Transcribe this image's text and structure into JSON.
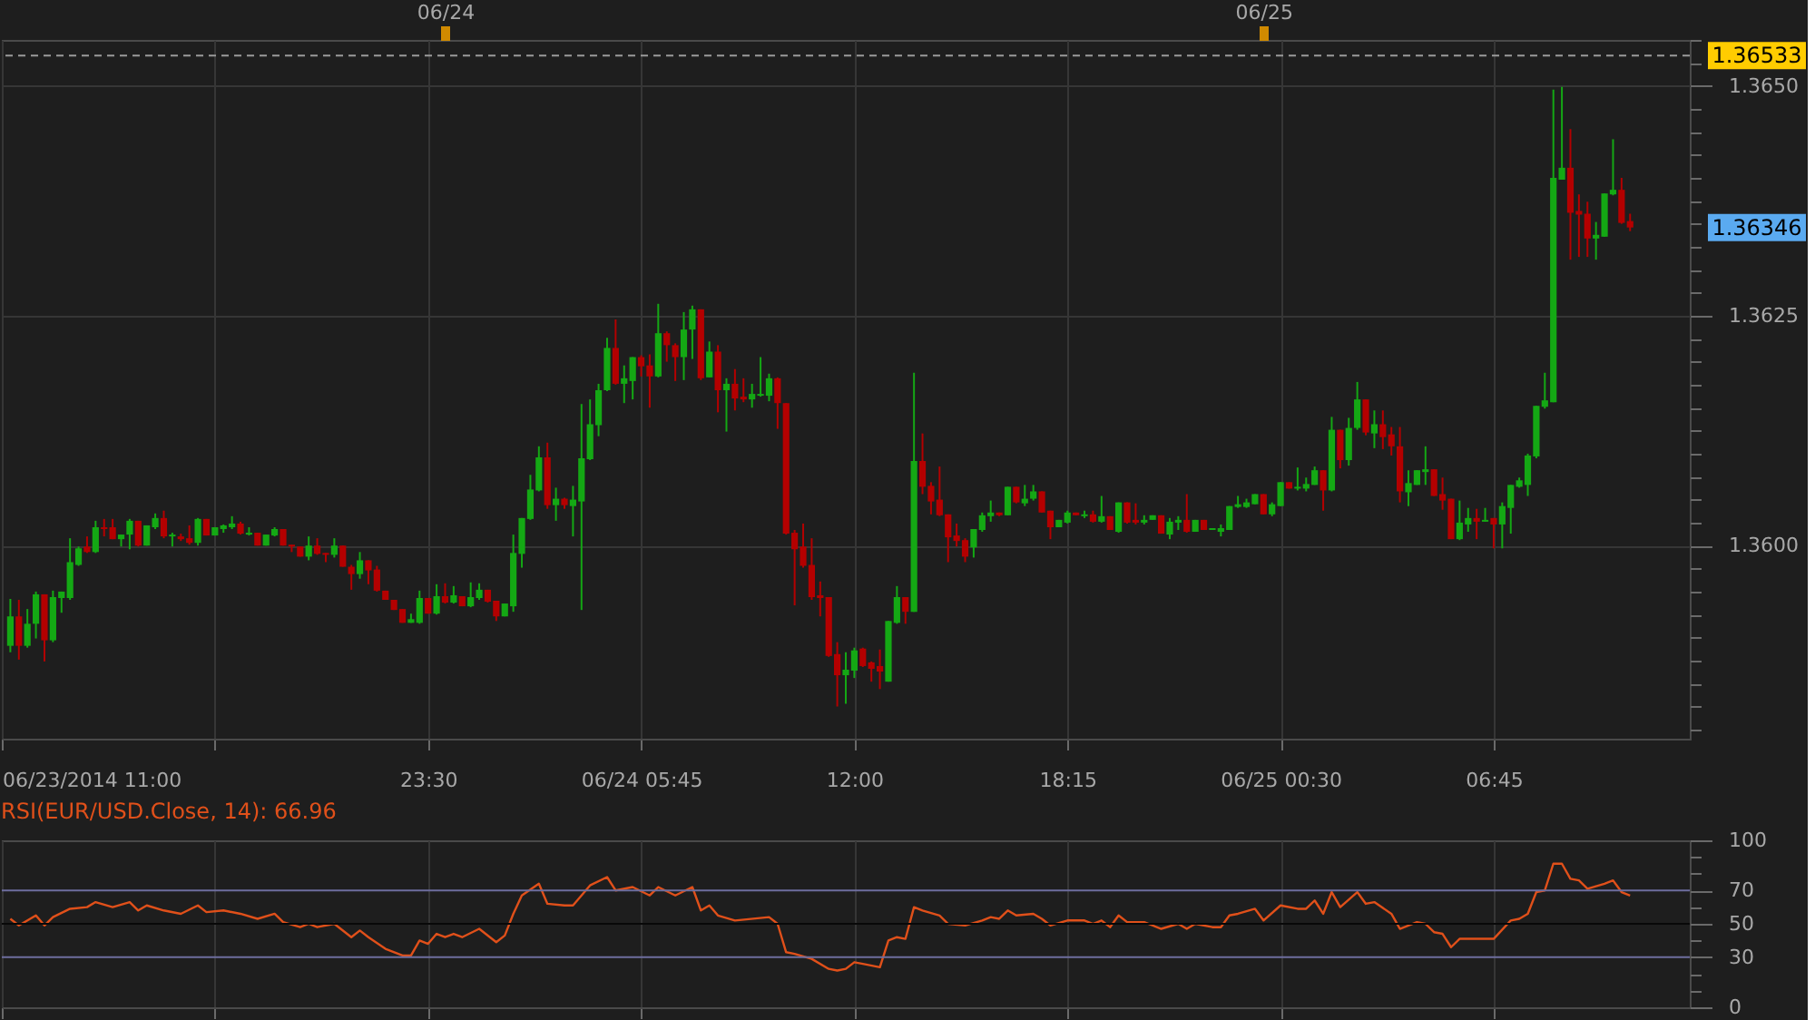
{
  "chart_data": [
    {
      "type": "candlestick",
      "x": [
        "2014-06-23T11:15",
        "2014-06-23T11:30",
        "2014-06-23T11:45",
        "2014-06-23T12:00",
        "2014-06-23T12:15",
        "2014-06-23T12:30",
        "2014-06-23T12:45",
        "2014-06-23T13:00",
        "2014-06-23T13:15",
        "2014-06-23T13:30",
        "2014-06-23T13:45",
        "2014-06-23T14:00",
        "2014-06-23T14:15",
        "2014-06-23T14:30",
        "2014-06-23T14:45",
        "2014-06-23T15:00",
        "2014-06-23T15:15",
        "2014-06-23T15:30",
        "2014-06-23T15:45",
        "2014-06-23T16:00",
        "2014-06-23T16:15",
        "2014-06-23T16:30",
        "2014-06-23T16:45",
        "2014-06-23T17:00",
        "2014-06-23T17:15",
        "2014-06-23T17:30",
        "2014-06-23T17:45",
        "2014-06-23T18:00",
        "2014-06-23T18:15",
        "2014-06-23T18:30",
        "2014-06-23T18:45",
        "2014-06-23T19:00",
        "2014-06-23T19:15",
        "2014-06-23T19:30",
        "2014-06-23T19:45",
        "2014-06-23T20:00",
        "2014-06-23T20:15",
        "2014-06-23T20:30",
        "2014-06-23T20:45",
        "2014-06-23T21:00",
        "2014-06-23T21:15",
        "2014-06-23T21:30",
        "2014-06-23T21:45",
        "2014-06-23T22:00",
        "2014-06-23T22:15",
        "2014-06-23T22:30",
        "2014-06-23T22:45",
        "2014-06-23T23:00",
        "2014-06-23T23:15",
        "2014-06-23T23:30",
        "2014-06-23T23:45",
        "2014-06-24T00:00",
        "2014-06-24T00:15",
        "2014-06-24T00:30",
        "2014-06-24T00:45",
        "2014-06-24T01:00",
        "2014-06-24T01:15",
        "2014-06-24T01:30",
        "2014-06-24T01:45",
        "2014-06-24T02:00",
        "2014-06-24T02:15",
        "2014-06-24T02:30",
        "2014-06-24T02:45",
        "2014-06-24T03:00",
        "2014-06-24T03:15",
        "2014-06-24T03:30",
        "2014-06-24T03:45",
        "2014-06-24T04:00",
        "2014-06-24T04:15",
        "2014-06-24T04:30",
        "2014-06-24T04:45",
        "2014-06-24T05:00",
        "2014-06-24T05:15",
        "2014-06-24T05:30",
        "2014-06-24T05:45",
        "2014-06-24T06:00",
        "2014-06-24T06:15",
        "2014-06-24T06:30",
        "2014-06-24T06:45",
        "2014-06-24T07:00",
        "2014-06-24T07:15",
        "2014-06-24T07:30",
        "2014-06-24T07:45",
        "2014-06-24T08:00",
        "2014-06-24T08:15",
        "2014-06-24T08:30",
        "2014-06-24T08:45",
        "2014-06-24T09:00",
        "2014-06-24T09:15",
        "2014-06-24T09:30",
        "2014-06-24T09:45",
        "2014-06-24T10:00",
        "2014-06-24T10:15",
        "2014-06-24T10:30",
        "2014-06-24T10:45",
        "2014-06-24T11:00",
        "2014-06-24T11:15",
        "2014-06-24T11:30",
        "2014-06-24T11:45",
        "2014-06-24T12:00",
        "2014-06-24T12:15",
        "2014-06-24T12:30",
        "2014-06-24T12:45",
        "2014-06-24T13:00",
        "2014-06-24T13:15",
        "2014-06-24T13:30",
        "2014-06-24T13:45",
        "2014-06-24T14:00",
        "2014-06-24T14:15",
        "2014-06-24T14:30",
        "2014-06-24T14:45",
        "2014-06-24T15:00",
        "2014-06-24T15:15",
        "2014-06-24T15:30",
        "2014-06-24T15:45",
        "2014-06-24T16:00",
        "2014-06-24T16:15",
        "2014-06-24T16:30",
        "2014-06-24T16:45",
        "2014-06-24T17:00",
        "2014-06-24T17:15",
        "2014-06-24T17:30",
        "2014-06-24T17:45",
        "2014-06-24T18:00",
        "2014-06-24T18:15",
        "2014-06-24T18:30",
        "2014-06-24T18:45",
        "2014-06-24T19:00",
        "2014-06-24T19:15",
        "2014-06-24T19:30",
        "2014-06-24T19:45",
        "2014-06-24T20:00",
        "2014-06-24T20:15",
        "2014-06-24T20:30",
        "2014-06-24T20:45",
        "2014-06-24T21:00",
        "2014-06-24T21:15",
        "2014-06-24T21:30",
        "2014-06-24T21:45",
        "2014-06-24T22:00",
        "2014-06-24T22:15",
        "2014-06-24T22:30",
        "2014-06-24T22:45",
        "2014-06-24T23:00",
        "2014-06-24T23:15",
        "2014-06-24T23:30",
        "2014-06-24T23:45",
        "2014-06-25T00:00",
        "2014-06-25T00:15",
        "2014-06-25T00:30",
        "2014-06-25T00:45",
        "2014-06-25T01:00",
        "2014-06-25T01:15",
        "2014-06-25T01:30",
        "2014-06-25T01:45",
        "2014-06-25T02:00",
        "2014-06-25T02:15",
        "2014-06-25T02:30",
        "2014-06-25T02:45",
        "2014-06-25T03:00",
        "2014-06-25T03:15",
        "2014-06-25T03:30",
        "2014-06-25T03:45",
        "2014-06-25T04:00",
        "2014-06-25T04:15",
        "2014-06-25T04:30",
        "2014-06-25T04:45",
        "2014-06-25T05:00",
        "2014-06-25T05:15",
        "2014-06-25T05:30",
        "2014-06-25T05:45",
        "2014-06-25T06:00",
        "2014-06-25T06:15",
        "2014-06-25T06:30",
        "2014-06-25T06:45",
        "2014-06-25T07:00",
        "2014-06-25T07:15",
        "2014-06-25T07:30",
        "2014-06-25T07:45",
        "2014-06-25T08:00",
        "2014-06-25T08:15",
        "2014-06-25T08:30",
        "2014-06-25T08:45",
        "2014-06-25T09:00",
        "2014-06-25T09:15",
        "2014-06-25T09:30",
        "2014-06-25T09:45",
        "2014-06-25T10:00",
        "2014-06-25T10:15",
        "2014-06-25T10:30",
        "2014-06-25T10:45"
      ],
      "ohlc": [
        [
          1.35891,
          1.35942,
          1.35884,
          1.35923
        ],
        [
          1.35923,
          1.35941,
          1.35876,
          1.35891
        ],
        [
          1.35891,
          1.35931,
          1.35889,
          1.35915
        ],
        [
          1.35915,
          1.3595,
          1.35899,
          1.35947
        ],
        [
          1.35947,
          1.35947,
          1.35874,
          1.35897
        ],
        [
          1.35897,
          1.35951,
          1.35895,
          1.35944
        ],
        [
          1.35943,
          1.3595,
          1.35927,
          1.3595
        ],
        [
          1.35943,
          1.36008,
          1.35941,
          1.35982
        ],
        [
          1.35979,
          1.35999,
          1.35978,
          1.35997
        ],
        [
          1.35999,
          1.3601,
          1.35992,
          1.35993
        ],
        [
          1.35993,
          1.36027,
          1.35992,
          1.3602
        ],
        [
          1.3602,
          1.36029,
          1.3601,
          1.36018
        ],
        [
          1.3602,
          1.36029,
          1.36007,
          1.36007
        ],
        [
          1.36007,
          1.36012,
          1.35999,
          1.36012
        ],
        [
          1.36012,
          1.36029,
          1.35996,
          1.36027
        ],
        [
          1.36027,
          1.36027,
          1.35999,
          1.36
        ],
        [
          1.36,
          1.36022,
          1.36,
          1.36022
        ],
        [
          1.3602,
          1.36035,
          1.36018,
          1.3603
        ],
        [
          1.3603,
          1.36038,
          1.36008,
          1.3601
        ],
        [
          1.3601,
          1.36014,
          1.35999,
          1.36012
        ],
        [
          1.3601,
          1.36013,
          1.36005,
          1.36007
        ],
        [
          1.36008,
          1.36022,
          1.36001,
          1.36003
        ],
        [
          1.36003,
          1.3603,
          1.36,
          1.36029
        ],
        [
          1.36029,
          1.36029,
          1.36011,
          1.36011
        ],
        [
          1.36011,
          1.3602,
          1.36011,
          1.3602
        ],
        [
          1.36018,
          1.36023,
          1.36014,
          1.36022
        ],
        [
          1.3602,
          1.36032,
          1.36018,
          1.36024
        ],
        [
          1.36024,
          1.36026,
          1.36012,
          1.36013
        ],
        [
          1.36012,
          1.3602,
          1.36011,
          1.36014
        ],
        [
          1.36014,
          1.36014,
          1.36,
          1.36
        ],
        [
          1.36,
          1.36012,
          1.36,
          1.36012
        ],
        [
          1.36011,
          1.3602,
          1.3601,
          1.36018
        ],
        [
          1.36018,
          1.36018,
          1.36,
          1.36
        ],
        [
          1.36001,
          1.36001,
          1.35993,
          1.35999
        ],
        [
          1.35999,
          1.35999,
          1.35988,
          1.35988
        ],
        [
          1.35988,
          1.3601,
          1.35984,
          1.36
        ],
        [
          1.36,
          1.36008,
          1.3599,
          1.35991
        ],
        [
          1.35992,
          1.35992,
          1.35982,
          1.3599
        ],
        [
          1.3599,
          1.36008,
          1.35987,
          1.36
        ],
        [
          1.36,
          1.36,
          1.35977,
          1.35977
        ],
        [
          1.35977,
          1.35979,
          1.35952,
          1.35969
        ],
        [
          1.35969,
          1.35993,
          1.35964,
          1.35984
        ],
        [
          1.35984,
          1.35984,
          1.35958,
          1.35973
        ],
        [
          1.35974,
          1.35978,
          1.3595,
          1.35951
        ],
        [
          1.35951,
          1.35951,
          1.35941,
          1.35941
        ],
        [
          1.35941,
          1.35941,
          1.3593,
          1.3593
        ],
        [
          1.35931,
          1.35931,
          1.35916,
          1.35916
        ],
        [
          1.35916,
          1.35926,
          1.35916,
          1.3592
        ],
        [
          1.35916,
          1.35951,
          1.35915,
          1.35943
        ],
        [
          1.35943,
          1.35943,
          1.35926,
          1.35926
        ],
        [
          1.35926,
          1.35958,
          1.35925,
          1.35945
        ],
        [
          1.35945,
          1.35959,
          1.35937,
          1.35938
        ],
        [
          1.35938,
          1.35956,
          1.35937,
          1.35946
        ],
        [
          1.35945,
          1.35945,
          1.35934,
          1.35934
        ],
        [
          1.35934,
          1.3596,
          1.35933,
          1.35944
        ],
        [
          1.35943,
          1.35959,
          1.35941,
          1.35952
        ],
        [
          1.35952,
          1.35952,
          1.35938,
          1.35939
        ],
        [
          1.3594,
          1.3594,
          1.35918,
          1.35923
        ],
        [
          1.35923,
          1.35937,
          1.35923,
          1.35937
        ],
        [
          1.35934,
          1.36012,
          1.35928,
          1.35992
        ],
        [
          1.35991,
          1.3603,
          1.35976,
          1.3603
        ],
        [
          1.36029,
          1.36077,
          1.36028,
          1.36061
        ],
        [
          1.3606,
          1.36108,
          1.36059,
          1.36096
        ],
        [
          1.36096,
          1.36112,
          1.3604,
          1.36044
        ],
        [
          1.36044,
          1.36063,
          1.36027,
          1.36051
        ],
        [
          1.36051,
          1.36052,
          1.3604,
          1.36044
        ],
        [
          1.36043,
          1.36065,
          1.3601,
          1.3605
        ],
        [
          1.36048,
          1.36154,
          1.3593,
          1.36095
        ],
        [
          1.36094,
          1.36159,
          1.36093,
          1.36132
        ],
        [
          1.36131,
          1.36176,
          1.36119,
          1.36169
        ],
        [
          1.36169,
          1.36226,
          1.36168,
          1.36215
        ],
        [
          1.36215,
          1.36246,
          1.36175,
          1.36176
        ],
        [
          1.36176,
          1.36196,
          1.36155,
          1.36182
        ],
        [
          1.36179,
          1.36205,
          1.36159,
          1.36205
        ],
        [
          1.36205,
          1.36207,
          1.36184,
          1.36195
        ],
        [
          1.36196,
          1.36208,
          1.3615,
          1.36184
        ],
        [
          1.36184,
          1.36263,
          1.36183,
          1.36231
        ],
        [
          1.36231,
          1.36233,
          1.362,
          1.36218
        ],
        [
          1.36218,
          1.3622,
          1.36179,
          1.36205
        ],
        [
          1.36205,
          1.36254,
          1.3618,
          1.36235
        ],
        [
          1.36235,
          1.36261,
          1.36203,
          1.36257
        ],
        [
          1.36257,
          1.36257,
          1.3618,
          1.36182
        ],
        [
          1.36183,
          1.36222,
          1.36183,
          1.36211
        ],
        [
          1.36211,
          1.36218,
          1.36145,
          1.36169
        ],
        [
          1.36169,
          1.36182,
          1.36124,
          1.36176
        ],
        [
          1.36176,
          1.36192,
          1.36147,
          1.3616
        ],
        [
          1.36162,
          1.36182,
          1.36156,
          1.36159
        ],
        [
          1.36159,
          1.36176,
          1.3615,
          1.36165
        ],
        [
          1.36163,
          1.36205,
          1.36162,
          1.36165
        ],
        [
          1.36163,
          1.36187,
          1.36157,
          1.36182
        ],
        [
          1.36182,
          1.36183,
          1.36127,
          1.36155
        ],
        [
          1.36155,
          1.36155,
          1.36012,
          1.36013
        ],
        [
          1.36014,
          1.36017,
          1.35935,
          1.35996
        ],
        [
          1.35999,
          1.36024,
          1.35976,
          1.35978
        ],
        [
          1.35979,
          1.36008,
          1.35941,
          1.35944
        ],
        [
          1.35946,
          1.35961,
          1.35923,
          1.35943
        ],
        [
          1.35944,
          1.35944,
          1.35879,
          1.3588
        ],
        [
          1.35882,
          1.35895,
          1.35825,
          1.35859
        ],
        [
          1.35859,
          1.35884,
          1.35828,
          1.35865
        ],
        [
          1.35864,
          1.35889,
          1.35856,
          1.35886
        ],
        [
          1.35888,
          1.35889,
          1.35868,
          1.35869
        ],
        [
          1.35873,
          1.35874,
          1.35852,
          1.35866
        ],
        [
          1.35869,
          1.35887,
          1.35844,
          1.35863
        ],
        [
          1.35852,
          1.35918,
          1.35852,
          1.35918
        ],
        [
          1.35916,
          1.35956,
          1.35915,
          1.35944
        ],
        [
          1.35944,
          1.35944,
          1.35915,
          1.35928
        ],
        [
          1.35928,
          1.36188,
          1.35928,
          1.36092
        ],
        [
          1.36092,
          1.36122,
          1.36056,
          1.36064
        ],
        [
          1.36065,
          1.36069,
          1.36034,
          1.36048
        ],
        [
          1.3605,
          1.36086,
          1.36032,
          1.36033
        ],
        [
          1.36034,
          1.36034,
          1.35982,
          1.36009
        ],
        [
          1.36011,
          1.36024,
          1.35999,
          1.36005
        ],
        [
          1.36006,
          1.36008,
          1.35982,
          1.35988
        ],
        [
          1.35998,
          1.36018,
          1.35987,
          1.36018
        ],
        [
          1.36017,
          1.36036,
          1.36015,
          1.36033
        ],
        [
          1.36032,
          1.36049,
          1.36026,
          1.36036
        ],
        [
          1.36036,
          1.36036,
          1.36032,
          1.36033
        ],
        [
          1.36033,
          1.36064,
          1.36033,
          1.36064
        ],
        [
          1.36064,
          1.36064,
          1.36046,
          1.36047
        ],
        [
          1.36046,
          1.36066,
          1.36043,
          1.36051
        ],
        [
          1.36051,
          1.36066,
          1.36049,
          1.36059
        ],
        [
          1.36059,
          1.36059,
          1.36036,
          1.36036
        ],
        [
          1.36038,
          1.36038,
          1.36007,
          1.3602
        ],
        [
          1.3602,
          1.36028,
          1.3602,
          1.36028
        ],
        [
          1.36025,
          1.36038,
          1.36024,
          1.36036
        ],
        [
          1.36036,
          1.36036,
          1.36033,
          1.36033
        ],
        [
          1.36032,
          1.36038,
          1.3603,
          1.36034
        ],
        [
          1.36034,
          1.36038,
          1.36025,
          1.36026
        ],
        [
          1.36026,
          1.36054,
          1.36025,
          1.36032
        ],
        [
          1.36032,
          1.36032,
          1.36017,
          1.36017
        ],
        [
          1.36015,
          1.36047,
          1.36014,
          1.36047
        ],
        [
          1.36047,
          1.36047,
          1.36024,
          1.36025
        ],
        [
          1.36028,
          1.36046,
          1.36023,
          1.36025
        ],
        [
          1.36025,
          1.36033,
          1.36023,
          1.36028
        ],
        [
          1.36028,
          1.36033,
          1.36028,
          1.36033
        ],
        [
          1.36033,
          1.36033,
          1.36013,
          1.36013
        ],
        [
          1.36012,
          1.3603,
          1.36007,
          1.36026
        ],
        [
          1.36025,
          1.36032,
          1.36017,
          1.36028
        ],
        [
          1.36028,
          1.36056,
          1.36014,
          1.36015
        ],
        [
          1.36015,
          1.36028,
          1.36015,
          1.36028
        ],
        [
          1.36028,
          1.36028,
          1.36017,
          1.36017
        ],
        [
          1.36017,
          1.36019,
          1.36017,
          1.36019
        ],
        [
          1.36015,
          1.36023,
          1.3601,
          1.36019
        ],
        [
          1.36017,
          1.36043,
          1.36017,
          1.36043
        ],
        [
          1.36042,
          1.36054,
          1.36041,
          1.36045
        ],
        [
          1.36042,
          1.36051,
          1.36041,
          1.36047
        ],
        [
          1.36045,
          1.36056,
          1.36045,
          1.36056
        ],
        [
          1.36056,
          1.36056,
          1.36034,
          1.36034
        ],
        [
          1.36034,
          1.36047,
          1.36032,
          1.36045
        ],
        [
          1.36043,
          1.36069,
          1.36043,
          1.36069
        ],
        [
          1.36069,
          1.36069,
          1.36062,
          1.36062
        ],
        [
          1.36062,
          1.36085,
          1.3606,
          1.36064
        ],
        [
          1.36062,
          1.36074,
          1.36059,
          1.36067
        ],
        [
          1.36066,
          1.36086,
          1.36066,
          1.36082
        ],
        [
          1.36082,
          1.36082,
          1.36038,
          1.3606
        ],
        [
          1.3606,
          1.3614,
          1.36059,
          1.36126
        ],
        [
          1.36126,
          1.36126,
          1.36084,
          1.36093
        ],
        [
          1.36093,
          1.36139,
          1.36087,
          1.36128
        ],
        [
          1.36128,
          1.36178,
          1.36126,
          1.36159
        ],
        [
          1.36159,
          1.36159,
          1.3612,
          1.36123
        ],
        [
          1.36122,
          1.36147,
          1.36106,
          1.36132
        ],
        [
          1.36132,
          1.36147,
          1.36105,
          1.36118
        ],
        [
          1.36121,
          1.36129,
          1.36098,
          1.36108
        ],
        [
          1.36108,
          1.36129,
          1.36047,
          1.36059
        ],
        [
          1.36058,
          1.36082,
          1.36043,
          1.36068
        ],
        [
          1.36066,
          1.36082,
          1.36066,
          1.36082
        ],
        [
          1.3608,
          1.36108,
          1.36066,
          1.36083
        ],
        [
          1.36083,
          1.36083,
          1.36054,
          1.36054
        ],
        [
          1.36056,
          1.36074,
          1.36039,
          1.36049
        ],
        [
          1.36051,
          1.36051,
          1.36007,
          1.36007
        ],
        [
          1.36007,
          1.36049,
          1.36006,
          1.36025
        ],
        [
          1.36023,
          1.36041,
          1.36015,
          1.3603
        ],
        [
          1.3603,
          1.3604,
          1.36007,
          1.36026
        ],
        [
          1.36026,
          1.36041,
          1.36026,
          1.36028
        ],
        [
          1.3603,
          1.3603,
          1.35997,
          1.36023
        ],
        [
          1.36023,
          1.36047,
          1.35997,
          1.36043
        ],
        [
          1.36041,
          1.36066,
          1.36013,
          1.36066
        ],
        [
          1.36064,
          1.36074,
          1.36063,
          1.36071
        ],
        [
          1.36066,
          1.361,
          1.36054,
          1.36098
        ],
        [
          1.36097,
          1.36152,
          1.36095,
          1.36152
        ],
        [
          1.36151,
          1.36188,
          1.36149,
          1.36158
        ],
        [
          1.36156,
          1.36496,
          1.36156,
          1.364
        ],
        [
          1.36398,
          1.36499,
          1.36398,
          1.36411
        ],
        [
          1.36411,
          1.36453,
          1.36311,
          1.36362
        ],
        [
          1.36364,
          1.36382,
          1.36314,
          1.3636
        ],
        [
          1.36361,
          1.36374,
          1.36314,
          1.36334
        ],
        [
          1.36334,
          1.36352,
          1.36311,
          1.36338
        ],
        [
          1.36336,
          1.36383,
          1.36336,
          1.36383
        ],
        [
          1.36382,
          1.36442,
          1.36381,
          1.36387
        ],
        [
          1.36387,
          1.364,
          1.3635,
          1.36351
        ],
        [
          1.36353,
          1.36361,
          1.36342,
          1.36346
        ]
      ],
      "colors": [
        "#14a814",
        "#b40000",
        "#14a814",
        "#14a814",
        "#b40000",
        "#14a814",
        "#14a814",
        "#14a814",
        "#14a814",
        "#b40000",
        "#14a814",
        "#b40000",
        "#b40000",
        "#14a814",
        "#14a814",
        "#b40000",
        "#14a814",
        "#14a814",
        "#b40000",
        "#14a814",
        "#b40000",
        "#b40000",
        "#14a814",
        "#b40000",
        "#14a814",
        "#14a814",
        "#14a814",
        "#b40000",
        "#14a814",
        "#b40000",
        "#14a814",
        "#14a814",
        "#b40000",
        "#b40000",
        "#b40000",
        "#14a814",
        "#b40000",
        "#b40000",
        "#14a814",
        "#b40000",
        "#b40000",
        "#14a814",
        "#b40000",
        "#b40000",
        "#b40000",
        "#b40000",
        "#b40000",
        "#14a814",
        "#14a814",
        "#b40000",
        "#14a814",
        "#b40000",
        "#14a814",
        "#b40000",
        "#14a814",
        "#14a814",
        "#b40000",
        "#b40000",
        "#14a814",
        "#14a814",
        "#14a814",
        "#14a814",
        "#14a814",
        "#b40000",
        "#14a814",
        "#b40000",
        "#14a814",
        "#14a814",
        "#14a814",
        "#14a814",
        "#14a814",
        "#b40000",
        "#14a814",
        "#14a814",
        "#b40000",
        "#b40000",
        "#14a814",
        "#b40000",
        "#b40000",
        "#14a814",
        "#14a814",
        "#b40000",
        "#14a814",
        "#b40000",
        "#14a814",
        "#b40000",
        "#b40000",
        "#14a814",
        "#14a814",
        "#14a814",
        "#b40000",
        "#b40000",
        "#b40000",
        "#b40000",
        "#b40000",
        "#b40000",
        "#b40000",
        "#b40000",
        "#14a814",
        "#14a814",
        "#b40000",
        "#b40000",
        "#b40000",
        "#14a814",
        "#14a814",
        "#b40000",
        "#14a814",
        "#b40000",
        "#b40000",
        "#b40000",
        "#b40000",
        "#b40000",
        "#b40000",
        "#14a814",
        "#14a814",
        "#14a814",
        "#b40000",
        "#14a814",
        "#b40000",
        "#14a814",
        "#14a814",
        "#b40000",
        "#b40000",
        "#14a814",
        "#14a814",
        "#b40000",
        "#14a814",
        "#b40000",
        "#14a814",
        "#b40000",
        "#14a814",
        "#b40000",
        "#b40000",
        "#14a814",
        "#14a814",
        "#b40000",
        "#14a814",
        "#14a814",
        "#b40000",
        "#14a814",
        "#b40000",
        "#14a814",
        "#14a814",
        "#14a814",
        "#14a814",
        "#14a814",
        "#14a814",
        "#b40000",
        "#14a814",
        "#14a814",
        "#b40000",
        "#14a814",
        "#14a814",
        "#14a814",
        "#b40000",
        "#14a814",
        "#b40000",
        "#14a814",
        "#14a814",
        "#b40000",
        "#14a814",
        "#b40000",
        "#b40000",
        "#b40000",
        "#14a814",
        "#14a814",
        "#14a814",
        "#b40000",
        "#b40000",
        "#b40000",
        "#14a814",
        "#14a814",
        "#b40000",
        "#14a814",
        "#b40000",
        "#14a814",
        "#14a814",
        "#14a814",
        "#14a814",
        "#14a814",
        "#14a814",
        "#14a814",
        "#14a814",
        "#b40000",
        "#b40000",
        "#b40000",
        "#14a814",
        "#14a814",
        "#14a814",
        "#b40000",
        "#b40000"
      ],
      "xlim": [
        "2014-06-23T11:00",
        "2014-06-25T12:30"
      ],
      "xticks": [
        {
          "value": "2014-06-23T11:00",
          "label": "06/23/2014 11:00"
        },
        {
          "value": "2014-06-23T17:15",
          "label": null
        },
        {
          "value": "2014-06-23T23:30",
          "label": "23:30"
        },
        {
          "value": "2014-06-24T05:45",
          "label": "06/24 05:45"
        },
        {
          "value": "2014-06-24T12:00",
          "label": "12:00"
        },
        {
          "value": "2014-06-24T18:15",
          "label": "18:15"
        },
        {
          "value": "2014-06-25T00:30",
          "label": "06/25 00:30"
        },
        {
          "value": "2014-06-25T06:45",
          "label": "06:45"
        }
      ],
      "x2lim": [
        "2014-06-23T11:00",
        "2014-06-25T12:30"
      ],
      "x2ticks": [
        {
          "value": "2014-06-24T00:00",
          "label": "06/24"
        },
        {
          "value": "2014-06-25T00:00",
          "label": "06/25"
        }
      ],
      "ylim": [
        1.3579,
        1.3655
      ],
      "yticks": [
        {
          "value": 1.358,
          "label": null
        },
        {
          "value": 1.35825,
          "label": null
        },
        {
          "value": 1.3585,
          "label": null
        },
        {
          "value": 1.35875,
          "label": null
        },
        {
          "value": 1.359,
          "label": null
        },
        {
          "value": 1.35925,
          "label": null
        },
        {
          "value": 1.3595,
          "label": null
        },
        {
          "value": 1.35975,
          "label": null
        },
        {
          "value": 1.36,
          "label": "1.3600"
        },
        {
          "value": 1.36025,
          "label": null
        },
        {
          "value": 1.3605,
          "label": null
        },
        {
          "value": 1.36075,
          "label": null
        },
        {
          "value": 1.361,
          "label": null
        },
        {
          "value": 1.36125,
          "label": null
        },
        {
          "value": 1.3615,
          "label": null
        },
        {
          "value": 1.36175,
          "label": null
        },
        {
          "value": 1.362,
          "label": null
        },
        {
          "value": 1.36225,
          "label": null
        },
        {
          "value": 1.3625,
          "label": "1.3625"
        },
        {
          "value": 1.36275,
          "label": null
        },
        {
          "value": 1.363,
          "label": null
        },
        {
          "value": 1.36325,
          "label": null
        },
        {
          "value": 1.3635,
          "label": null
        },
        {
          "value": 1.36375,
          "label": null
        },
        {
          "value": 1.364,
          "label": null
        },
        {
          "value": 1.36425,
          "label": null
        },
        {
          "value": 1.3645,
          "label": null
        },
        {
          "value": 1.36475,
          "label": null
        },
        {
          "value": 1.365,
          "label": "1.3650"
        },
        {
          "value": 1.36525,
          "label": null
        },
        {
          "value": 1.3655,
          "label": null
        }
      ],
      "grid": true,
      "ref_lines": [
        {
          "axis": "y",
          "value": 1.36533,
          "label": "1.36533",
          "color": "#9a9a9a",
          "line_style": "dashed"
        }
      ],
      "annotations": [
        "1.36346"
      ]
    },
    {
      "type": "line",
      "title": "RSI(EUR/USD.Close, 14): 66.96",
      "x": [
        "2014-06-23T11:15",
        "2014-06-23T11:30",
        "2014-06-23T12:00",
        "2014-06-23T12:15",
        "2014-06-23T12:30",
        "2014-06-23T13:00",
        "2014-06-23T13:30",
        "2014-06-23T13:45",
        "2014-06-23T14:15",
        "2014-06-23T14:45",
        "2014-06-23T15:00",
        "2014-06-23T15:15",
        "2014-06-23T15:45",
        "2014-06-23T16:15",
        "2014-06-23T16:45",
        "2014-06-23T17:00",
        "2014-06-23T17:30",
        "2014-06-23T18:00",
        "2014-06-23T18:30",
        "2014-06-23T19:00",
        "2014-06-23T19:15",
        "2014-06-23T19:45",
        "2014-06-23T20:00",
        "2014-06-23T20:15",
        "2014-06-23T20:45",
        "2014-06-23T21:15",
        "2014-06-23T21:30",
        "2014-06-23T21:45",
        "2014-06-23T22:15",
        "2014-06-23T22:45",
        "2014-06-23T23:00",
        "2014-06-23T23:15",
        "2014-06-23T23:30",
        "2014-06-23T23:45",
        "2014-06-24T00:00",
        "2014-06-24T00:15",
        "2014-06-24T00:30",
        "2014-06-24T01:00",
        "2014-06-24T01:30",
        "2014-06-24T01:45",
        "2014-06-24T02:00",
        "2014-06-24T02:15",
        "2014-06-24T02:45",
        "2014-06-24T03:00",
        "2014-06-24T03:30",
        "2014-06-24T03:45",
        "2014-06-24T04:15",
        "2014-06-24T04:45",
        "2014-06-24T05:00",
        "2014-06-24T05:30",
        "2014-06-24T06:00",
        "2014-06-24T06:15",
        "2014-06-24T06:45",
        "2014-06-24T07:15",
        "2014-06-24T07:30",
        "2014-06-24T07:45",
        "2014-06-24T08:00",
        "2014-06-24T08:30",
        "2014-06-24T09:30",
        "2014-06-24T09:45",
        "2014-06-24T10:00",
        "2014-06-24T10:15",
        "2014-06-24T10:45",
        "2014-06-24T11:15",
        "2014-06-24T11:30",
        "2014-06-24T11:45",
        "2014-06-24T12:00",
        "2014-06-24T12:15",
        "2014-06-24T12:45",
        "2014-06-24T13:00",
        "2014-06-24T13:15",
        "2014-06-24T13:30",
        "2014-06-24T13:45",
        "2014-06-24T14:00",
        "2014-06-24T14:30",
        "2014-06-24T14:45",
        "2014-06-24T15:15",
        "2014-06-24T15:45",
        "2014-06-24T16:00",
        "2014-06-24T16:15",
        "2014-06-24T16:30",
        "2014-06-24T16:45",
        "2014-06-24T17:15",
        "2014-06-24T17:30",
        "2014-06-24T17:45",
        "2014-06-24T18:15",
        "2014-06-24T18:45",
        "2014-06-24T19:00",
        "2014-06-24T19:15",
        "2014-06-24T19:30",
        "2014-06-24T19:45",
        "2014-06-24T20:00",
        "2014-06-24T20:30",
        "2014-06-24T21:00",
        "2014-06-24T21:30",
        "2014-06-24T21:45",
        "2014-06-24T22:00",
        "2014-06-24T22:30",
        "2014-06-24T22:45",
        "2014-06-24T23:00",
        "2014-06-24T23:15",
        "2014-06-24T23:45",
        "2014-06-25T00:00",
        "2014-06-25T00:30",
        "2014-06-25T01:00",
        "2014-06-25T01:15",
        "2014-06-25T01:30",
        "2014-06-25T01:45",
        "2014-06-25T02:00",
        "2014-06-25T02:15",
        "2014-06-25T02:45",
        "2014-06-25T03:00",
        "2014-06-25T03:15",
        "2014-06-25T03:45",
        "2014-06-25T04:00",
        "2014-06-25T04:30",
        "2014-06-25T04:45",
        "2014-06-25T05:00",
        "2014-06-25T05:15",
        "2014-06-25T05:30",
        "2014-06-25T05:45",
        "2014-06-25T06:30",
        "2014-06-25T06:45",
        "2014-06-25T07:15",
        "2014-06-25T07:30",
        "2014-06-25T07:45",
        "2014-06-25T08:00",
        "2014-06-25T08:15",
        "2014-06-25T08:30",
        "2014-06-25T08:45",
        "2014-06-25T09:00",
        "2014-06-25T09:15",
        "2014-06-25T09:30",
        "2014-06-25T10:00",
        "2014-06-25T10:15",
        "2014-06-25T10:30",
        "2014-06-25T10:45"
      ],
      "series": [
        {
          "color": "#e0501a",
          "values": [
            53,
            49,
            55,
            49,
            54,
            59,
            60,
            63,
            60,
            63,
            58,
            61,
            58,
            56,
            61,
            57,
            58,
            56,
            53,
            56,
            51,
            48,
            50,
            48,
            50,
            42,
            46,
            42,
            35,
            31,
            31,
            40,
            38,
            44,
            42,
            44,
            42,
            47,
            39,
            43,
            56,
            67,
            74,
            62,
            61,
            61,
            73,
            78,
            70,
            72,
            67,
            72,
            67,
            72,
            58,
            61,
            55,
            52,
            54,
            50,
            33,
            32,
            29,
            23,
            22,
            23,
            27,
            26,
            24,
            40,
            42,
            41,
            60,
            58,
            55,
            50,
            49,
            52,
            54,
            53,
            58,
            55,
            56,
            53,
            49,
            52,
            52,
            50,
            52,
            48,
            55,
            51,
            51,
            47,
            50,
            47,
            50,
            48,
            48,
            55,
            56,
            59,
            52,
            61,
            59,
            59,
            64,
            56,
            69,
            60,
            69,
            62,
            63,
            56,
            47,
            51,
            50,
            45,
            44,
            36,
            41,
            41,
            41,
            52,
            53,
            56,
            69,
            70,
            86,
            86,
            77,
            76,
            71,
            74,
            76,
            69,
            66.96
          ]
        }
      ],
      "xlim": [
        "2014-06-23T11:00",
        "2014-06-25T12:30"
      ],
      "xticks": [
        {
          "value": "2014-06-23T11:00",
          "label": null
        },
        {
          "value": "2014-06-23T17:15",
          "label": null
        },
        {
          "value": "2014-06-23T23:30",
          "label": null
        },
        {
          "value": "2014-06-24T05:45",
          "label": null
        },
        {
          "value": "2014-06-24T12:00",
          "label": null
        },
        {
          "value": "2014-06-24T18:15",
          "label": null
        },
        {
          "value": "2014-06-25T00:30",
          "label": null
        },
        {
          "value": "2014-06-25T06:45",
          "label": null
        }
      ],
      "ylim": [
        0,
        100
      ],
      "yticks": [
        0,
        {
          "value": 10,
          "label": null
        },
        {
          "value": 20,
          "label": null
        },
        30,
        {
          "value": 40,
          "label": null
        },
        50,
        {
          "value": 60,
          "label": null
        },
        70,
        {
          "value": 80,
          "label": null
        },
        {
          "value": 90,
          "label": null
        },
        100
      ],
      "grid": "x",
      "tick_labels": "y",
      "ref_lines": [
        {
          "axis": "y",
          "value": 30,
          "color": "#6e6e9e"
        },
        {
          "axis": "y",
          "value": 50,
          "color": "#080808"
        },
        {
          "axis": "y",
          "value": 70,
          "color": "#6e6e9e"
        }
      ]
    }
  ]
}
